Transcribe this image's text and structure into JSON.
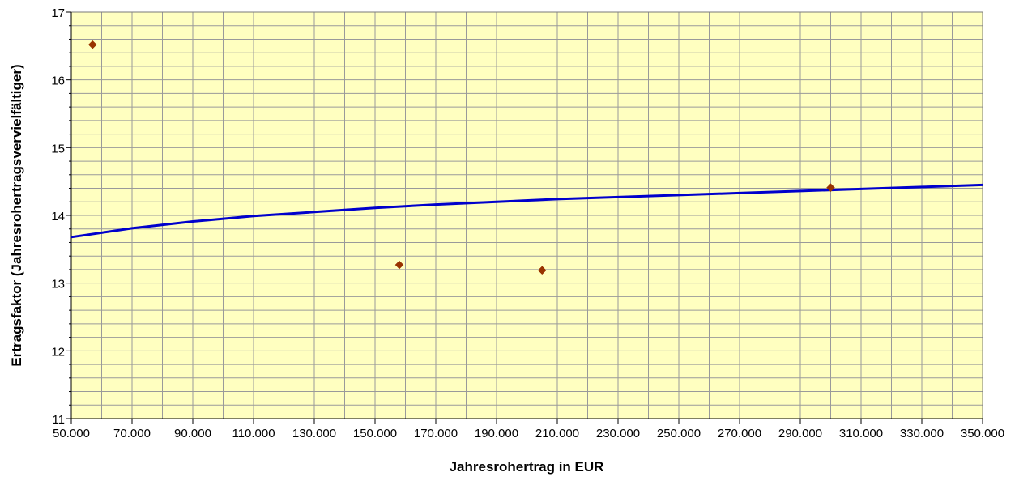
{
  "chart_data": {
    "type": "scatter",
    "title": "",
    "xlabel": "Jahresrohertrag in EUR",
    "ylabel": "Ertragsfaktor (Jahresrohertragsvervielfältiger)",
    "xlim": [
      50000,
      350000
    ],
    "ylim": [
      11,
      17
    ],
    "x_ticks": [
      50000,
      70000,
      90000,
      110000,
      130000,
      150000,
      170000,
      190000,
      210000,
      230000,
      250000,
      270000,
      290000,
      310000,
      330000,
      350000
    ],
    "x_tick_labels": [
      "50.000",
      "70.000",
      "90.000",
      "110.000",
      "130.000",
      "150.000",
      "170.000",
      "190.000",
      "210.000",
      "230.000",
      "250.000",
      "270.000",
      "290.000",
      "310.000",
      "330.000",
      "350.000"
    ],
    "y_ticks": [
      11,
      12,
      13,
      14,
      15,
      16,
      17
    ],
    "y_tick_labels": [
      "11",
      "12",
      "13",
      "14",
      "15",
      "16",
      "17"
    ],
    "grid": true,
    "legend": "none",
    "series": [
      {
        "type": "scatter",
        "marker": "diamond",
        "color": "#993300",
        "points": [
          {
            "x": 57000,
            "y": 16.52
          },
          {
            "x": 158000,
            "y": 13.27
          },
          {
            "x": 205000,
            "y": 13.19
          },
          {
            "x": 300000,
            "y": 14.41
          }
        ]
      },
      {
        "type": "line",
        "color": "#0000cc",
        "trendline": "logarithmic",
        "points": [
          {
            "x": 50000,
            "y": 13.68
          },
          {
            "x": 70000,
            "y": 13.81
          },
          {
            "x": 90000,
            "y": 13.91
          },
          {
            "x": 110000,
            "y": 13.99
          },
          {
            "x": 130000,
            "y": 14.05
          },
          {
            "x": 150000,
            "y": 14.11
          },
          {
            "x": 170000,
            "y": 14.16
          },
          {
            "x": 190000,
            "y": 14.2
          },
          {
            "x": 210000,
            "y": 14.24
          },
          {
            "x": 230000,
            "y": 14.27
          },
          {
            "x": 250000,
            "y": 14.3
          },
          {
            "x": 270000,
            "y": 14.33
          },
          {
            "x": 290000,
            "y": 14.36
          },
          {
            "x": 310000,
            "y": 14.39
          },
          {
            "x": 330000,
            "y": 14.42
          },
          {
            "x": 350000,
            "y": 14.45
          }
        ]
      }
    ],
    "colors": {
      "plot_background": "#ffffc0",
      "grid": "#9a9a9a",
      "axis": "#000000"
    }
  }
}
